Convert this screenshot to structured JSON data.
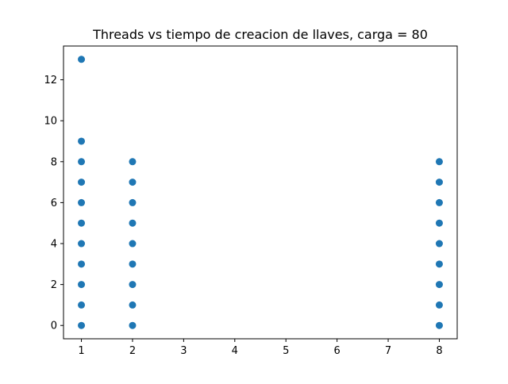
{
  "chart_data": {
    "type": "scatter",
    "title": "Threads vs tiempo de creacion de llaves, carga = 80",
    "xlabel": "",
    "ylabel": "",
    "x_tick_labels": [
      "1",
      "2",
      "3",
      "4",
      "5",
      "6",
      "7",
      "8"
    ],
    "y_ticks": [
      0,
      2,
      4,
      6,
      8,
      10,
      12
    ],
    "xlim": [
      0.65,
      8.35
    ],
    "ylim": [
      -0.65,
      13.65
    ],
    "grid": false,
    "marker_color": "#1f77b4",
    "points": [
      {
        "x": 1,
        "y": 0
      },
      {
        "x": 1,
        "y": 1
      },
      {
        "x": 1,
        "y": 2
      },
      {
        "x": 1,
        "y": 3
      },
      {
        "x": 1,
        "y": 4
      },
      {
        "x": 1,
        "y": 5
      },
      {
        "x": 1,
        "y": 6
      },
      {
        "x": 1,
        "y": 7
      },
      {
        "x": 1,
        "y": 8
      },
      {
        "x": 1,
        "y": 9
      },
      {
        "x": 1,
        "y": 13
      },
      {
        "x": 2,
        "y": 0
      },
      {
        "x": 2,
        "y": 1
      },
      {
        "x": 2,
        "y": 2
      },
      {
        "x": 2,
        "y": 3
      },
      {
        "x": 2,
        "y": 4
      },
      {
        "x": 2,
        "y": 5
      },
      {
        "x": 2,
        "y": 6
      },
      {
        "x": 2,
        "y": 7
      },
      {
        "x": 2,
        "y": 8
      },
      {
        "x": 8,
        "y": 0
      },
      {
        "x": 8,
        "y": 1
      },
      {
        "x": 8,
        "y": 2
      },
      {
        "x": 8,
        "y": 3
      },
      {
        "x": 8,
        "y": 4
      },
      {
        "x": 8,
        "y": 5
      },
      {
        "x": 8,
        "y": 6
      },
      {
        "x": 8,
        "y": 7
      },
      {
        "x": 8,
        "y": 8
      }
    ]
  }
}
